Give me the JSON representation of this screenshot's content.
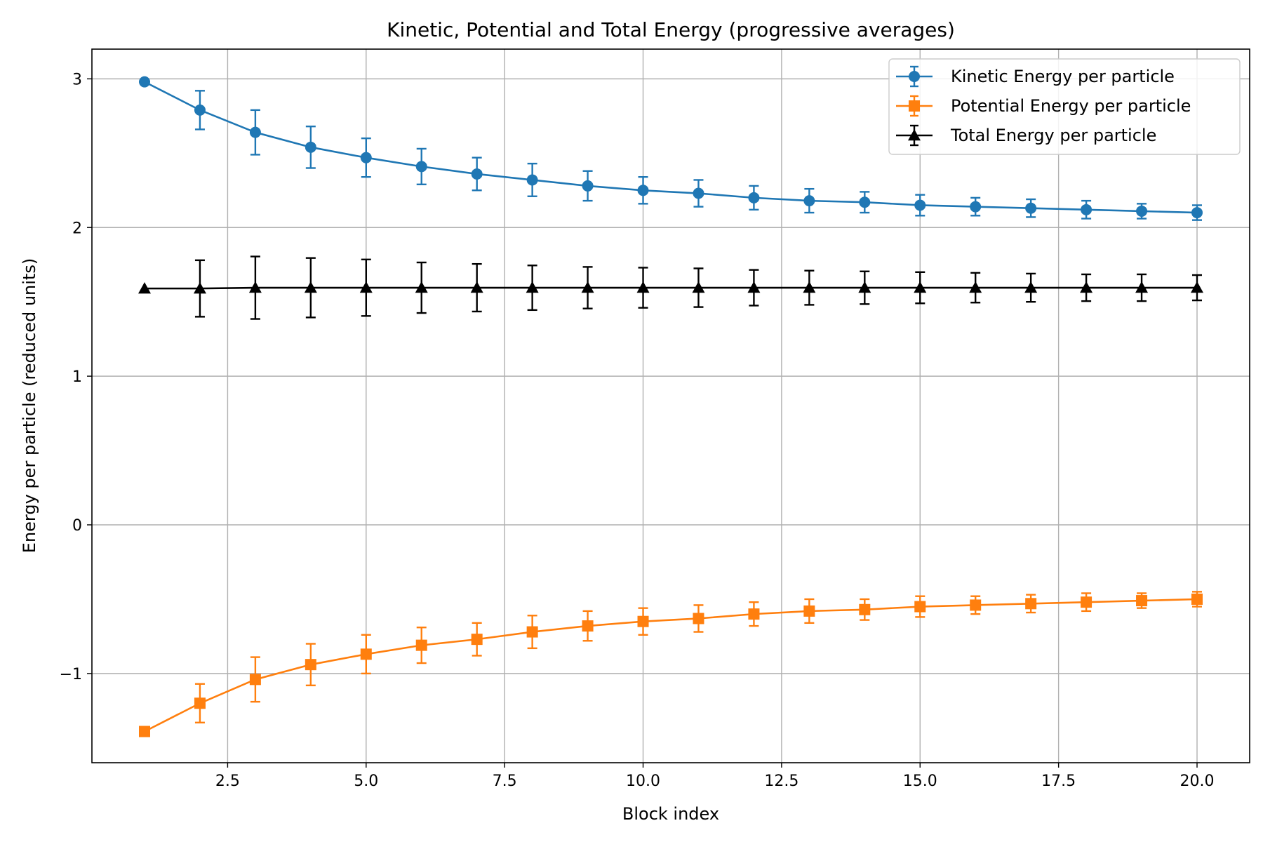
{
  "chart_data": {
    "type": "line",
    "title": "Kinetic, Potential and Total Energy (progressive averages)",
    "xlabel": "Block index",
    "ylabel": "Energy per particle (reduced units)",
    "xlim": [
      0.05,
      20.95
    ],
    "ylim": [
      -1.6,
      3.2
    ],
    "x_ticks": [
      2.5,
      5.0,
      7.5,
      10.0,
      12.5,
      15.0,
      17.5,
      20.0
    ],
    "x_tick_labels": [
      "2.5",
      "5.0",
      "7.5",
      "10.0",
      "12.5",
      "15.0",
      "17.5",
      "20.0"
    ],
    "y_ticks": [
      -1,
      0,
      1,
      2,
      3
    ],
    "y_tick_labels": [
      "−1",
      "0",
      "1",
      "2",
      "3"
    ],
    "grid": true,
    "legend_position": "top-right",
    "x": [
      1,
      2,
      3,
      4,
      5,
      6,
      7,
      8,
      9,
      10,
      11,
      12,
      13,
      14,
      15,
      16,
      17,
      18,
      19,
      20
    ],
    "series": [
      {
        "name": "Kinetic Energy per particle",
        "color": "#1f77b4",
        "marker": "circle",
        "values": [
          2.98,
          2.79,
          2.64,
          2.54,
          2.47,
          2.41,
          2.36,
          2.32,
          2.28,
          2.25,
          2.23,
          2.2,
          2.18,
          2.17,
          2.15,
          2.14,
          2.13,
          2.12,
          2.11,
          2.1
        ],
        "errors": [
          0.0,
          0.13,
          0.15,
          0.14,
          0.13,
          0.12,
          0.11,
          0.11,
          0.1,
          0.09,
          0.09,
          0.08,
          0.08,
          0.07,
          0.07,
          0.06,
          0.06,
          0.06,
          0.05,
          0.05
        ]
      },
      {
        "name": "Potential Energy per particle",
        "color": "#ff7f0e",
        "marker": "square",
        "values": [
          -1.39,
          -1.2,
          -1.04,
          -0.94,
          -0.87,
          -0.81,
          -0.77,
          -0.72,
          -0.68,
          -0.65,
          -0.63,
          -0.6,
          -0.58,
          -0.57,
          -0.55,
          -0.54,
          -0.53,
          -0.52,
          -0.51,
          -0.5
        ],
        "errors": [
          0.0,
          0.13,
          0.15,
          0.14,
          0.13,
          0.12,
          0.11,
          0.11,
          0.1,
          0.09,
          0.09,
          0.08,
          0.08,
          0.07,
          0.07,
          0.06,
          0.06,
          0.06,
          0.05,
          0.05
        ]
      },
      {
        "name": "Total Energy per particle",
        "color": "#000000",
        "marker": "triangle",
        "values": [
          1.59,
          1.59,
          1.595,
          1.595,
          1.595,
          1.595,
          1.595,
          1.595,
          1.595,
          1.595,
          1.595,
          1.595,
          1.595,
          1.595,
          1.595,
          1.595,
          1.595,
          1.595,
          1.595,
          1.595
        ],
        "errors": [
          0.0,
          0.19,
          0.21,
          0.2,
          0.19,
          0.17,
          0.16,
          0.15,
          0.14,
          0.135,
          0.13,
          0.12,
          0.115,
          0.11,
          0.105,
          0.1,
          0.095,
          0.09,
          0.09,
          0.085
        ]
      }
    ]
  }
}
